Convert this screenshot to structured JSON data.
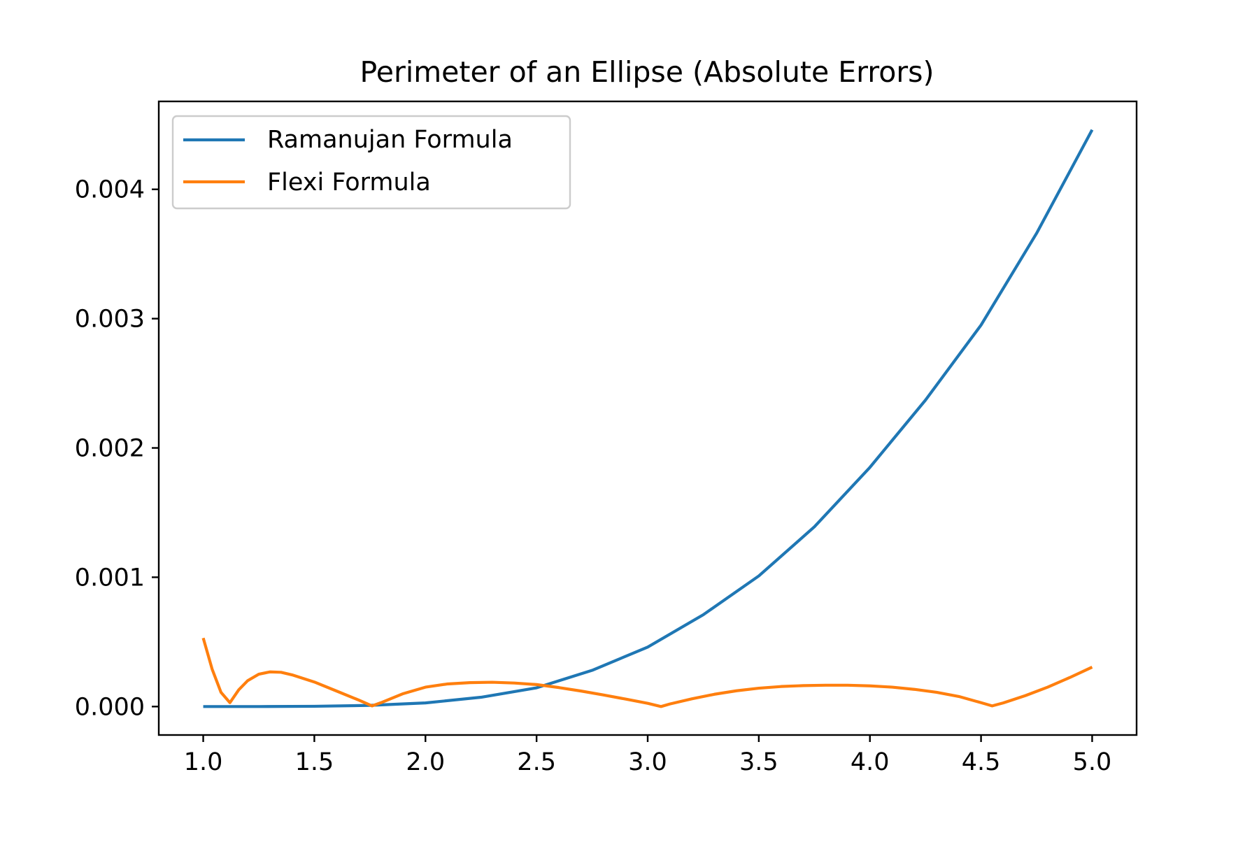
{
  "chart_data": {
    "type": "line",
    "title": "Perimeter of an Ellipse (Absolute Errors)",
    "xlabel": "",
    "ylabel": "",
    "xlim": [
      0.8,
      5.2
    ],
    "ylim": [
      -0.00022,
      0.00468
    ],
    "x_ticks": [
      1.0,
      1.5,
      2.0,
      2.5,
      3.0,
      3.5,
      4.0,
      4.5,
      5.0
    ],
    "x_tick_labels": [
      "1.0",
      "1.5",
      "2.0",
      "2.5",
      "3.0",
      "3.5",
      "4.0",
      "4.5",
      "5.0"
    ],
    "y_ticks": [
      0.0,
      0.001,
      0.002,
      0.003,
      0.004
    ],
    "y_tick_labels": [
      "0.000",
      "0.001",
      "0.002",
      "0.003",
      "0.004"
    ],
    "grid": false,
    "legend_position": "top-left",
    "series": [
      {
        "name": "Ramanujan Formula",
        "color": "#1f77b4",
        "x": [
          1.0,
          1.25,
          1.5,
          1.75,
          2.0,
          2.25,
          2.5,
          2.75,
          3.0,
          3.25,
          3.5,
          3.75,
          4.0,
          4.25,
          4.5,
          4.75,
          5.0
        ],
        "y": [
          0.0,
          0.0,
          2e-06,
          9e-06,
          2.8e-05,
          7.2e-05,
          0.000145,
          0.00028,
          0.00046,
          0.00071,
          0.00101,
          0.00139,
          0.00185,
          0.00237,
          0.00295,
          0.00366,
          0.00446
        ]
      },
      {
        "name": "Flexi Formula",
        "color": "#ff7f0e",
        "x": [
          1.0,
          1.04,
          1.08,
          1.12,
          1.16,
          1.2,
          1.25,
          1.3,
          1.35,
          1.4,
          1.5,
          1.6,
          1.7,
          1.76,
          1.8,
          1.9,
          2.0,
          2.1,
          2.2,
          2.3,
          2.4,
          2.5,
          2.6,
          2.7,
          2.8,
          2.9,
          3.0,
          3.06,
          3.1,
          3.2,
          3.3,
          3.4,
          3.5,
          3.6,
          3.7,
          3.8,
          3.9,
          4.0,
          4.1,
          4.2,
          4.3,
          4.4,
          4.5,
          4.55,
          4.6,
          4.7,
          4.8,
          4.9,
          5.0
        ],
        "y": [
          0.00053,
          0.00029,
          0.00011,
          3e-05,
          0.00013,
          0.0002,
          0.00025,
          0.000268,
          0.000265,
          0.000245,
          0.00019,
          0.00012,
          5e-05,
          5e-06,
          3e-05,
          0.0001,
          0.00015,
          0.000175,
          0.000185,
          0.000188,
          0.000182,
          0.00017,
          0.000147,
          0.00012,
          9e-05,
          5.8e-05,
          2.5e-05,
          0.0,
          2e-05,
          6e-05,
          9.5e-05,
          0.000122,
          0.000142,
          0.000155,
          0.000162,
          0.000165,
          0.000165,
          0.00016,
          0.00015,
          0.000133,
          0.00011,
          7.8e-05,
          3e-05,
          5e-06,
          2.8e-05,
          8.5e-05,
          0.00015,
          0.000225,
          0.000305
        ]
      }
    ]
  }
}
